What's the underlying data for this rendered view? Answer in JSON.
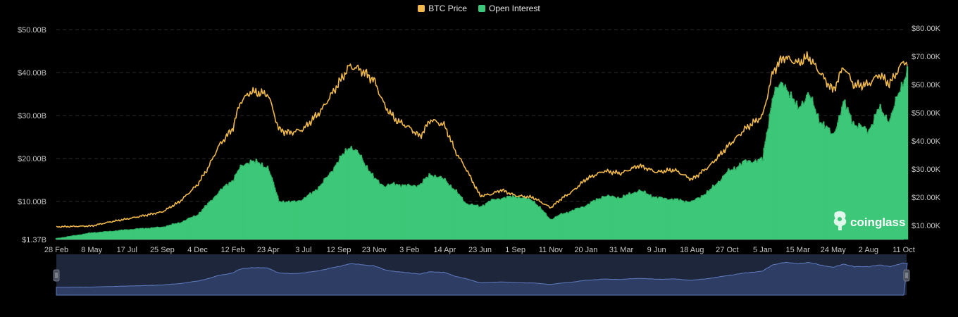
{
  "chart_data": {
    "type": "area",
    "title": "",
    "legend": [
      {
        "name": "BTC Price",
        "color": "#F0B94A"
      },
      {
        "name": "Open Interest",
        "color": "#3CC878"
      }
    ],
    "legend_position": "top-center",
    "grid": true,
    "x_tick_labels": [
      "28 Feb",
      "8 May",
      "17 Jul",
      "25 Sep",
      "4 Dec",
      "12 Feb",
      "23 Apr",
      "3 Jul",
      "12 Sep",
      "23 Nov",
      "3 Feb",
      "14 Apr",
      "23 Jun",
      "1 Sep",
      "11 Nov",
      "20 Jan",
      "31 Mar",
      "9 Jun",
      "18 Aug",
      "27 Oct",
      "5 Jan",
      "15 Mar",
      "24 May",
      "2 Aug",
      "11 Oct"
    ],
    "y_left": {
      "label": "",
      "ticks": [
        "$1.37B",
        "$10.00B",
        "$20.00B",
        "$30.00B",
        "$40.00B",
        "$50.00B"
      ],
      "tick_values": [
        1.37,
        10,
        20,
        30,
        40,
        50
      ],
      "range": [
        1.37,
        50
      ],
      "unit": "billion USD"
    },
    "y_right": {
      "label": "",
      "ticks": [
        "$10.00K",
        "$20.00K",
        "$30.00K",
        "$40.00K",
        "$50.00K",
        "$60.00K",
        "$70.00K",
        "$80.00K"
      ],
      "tick_values": [
        10,
        20,
        30,
        40,
        50,
        60,
        70,
        80
      ],
      "range": [
        5.5,
        80
      ],
      "unit": "thousand USD"
    },
    "series": [
      {
        "name": "BTC Price",
        "axis": "right",
        "x_index": [
          0,
          1,
          1.5,
          2,
          3,
          3.5,
          4,
          4.3,
          4.6,
          5,
          5.2,
          5.5,
          6,
          6.3,
          6.6,
          7,
          7.5,
          8,
          8.3,
          8.6,
          9,
          9.3,
          9.6,
          10,
          10.3,
          10.6,
          11,
          11.3,
          11.6,
          12,
          12.3,
          12.6,
          13,
          13.5,
          14,
          14.3,
          14.6,
          15,
          15.5,
          16,
          16.5,
          17,
          17.5,
          18,
          18.5,
          19,
          19.5,
          20,
          20.3,
          20.6,
          21,
          21.3,
          21.6,
          22,
          22.3,
          22.6,
          23,
          23.3,
          23.6,
          24,
          24.1
        ],
        "values": [
          9.5,
          9.8,
          11.2,
          12.3,
          14.8,
          18.5,
          24.5,
          30.5,
          38.2,
          44.5,
          53.6,
          57.4,
          56.5,
          44.1,
          42.8,
          44.2,
          50.8,
          60.5,
          66.5,
          65.4,
          61.5,
          52.4,
          47.5,
          44.7,
          41.5,
          47.6,
          45.4,
          36.3,
          30.2,
          20.5,
          21.0,
          22.6,
          20.6,
          19.9,
          16.3,
          19.5,
          21.9,
          26.4,
          29.3,
          28.5,
          31.3,
          28.9,
          29.7,
          26.3,
          31.1,
          37.8,
          44.2,
          48.8,
          64.7,
          69.9,
          67.5,
          69.8,
          64.7,
          57.8,
          66.5,
          59.5,
          60.1,
          63.6,
          60.2,
          68.4,
          67.5
        ]
      },
      {
        "name": "Open Interest",
        "axis": "left",
        "x_index": [
          0,
          1,
          1.5,
          2,
          3,
          3.5,
          4,
          4.3,
          4.6,
          5,
          5.2,
          5.5,
          6,
          6.3,
          6.6,
          7,
          7.5,
          8,
          8.3,
          8.6,
          9,
          9.3,
          9.6,
          10,
          10.3,
          10.6,
          11,
          11.3,
          11.6,
          12,
          12.3,
          12.6,
          13,
          13.5,
          14,
          14.3,
          14.6,
          15,
          15.5,
          16,
          16.5,
          17,
          17.5,
          18,
          18.5,
          19,
          19.5,
          20,
          20.3,
          20.6,
          21,
          21.3,
          21.6,
          22,
          22.3,
          22.6,
          23,
          23.3,
          23.6,
          24,
          24.1
        ],
        "values": [
          1.6,
          2.9,
          3.2,
          3.6,
          4.2,
          5.2,
          7.0,
          9.5,
          12.2,
          15.1,
          17.8,
          19.6,
          18.0,
          10.2,
          9.8,
          10.5,
          13.8,
          19.5,
          23.0,
          20.8,
          15.4,
          13.6,
          14.1,
          13.6,
          13.9,
          16.4,
          15.1,
          12.6,
          9.6,
          8.8,
          10.2,
          10.8,
          11.2,
          10.3,
          5.9,
          7.1,
          7.9,
          9.1,
          11.3,
          10.9,
          12.6,
          10.9,
          10.5,
          9.9,
          12.5,
          16.8,
          19.3,
          19.7,
          35.1,
          37.8,
          31.6,
          35.2,
          29.3,
          25.3,
          33.1,
          28.1,
          26.5,
          31.7,
          28.9,
          38.5,
          40.6
        ]
      }
    ]
  }
}
